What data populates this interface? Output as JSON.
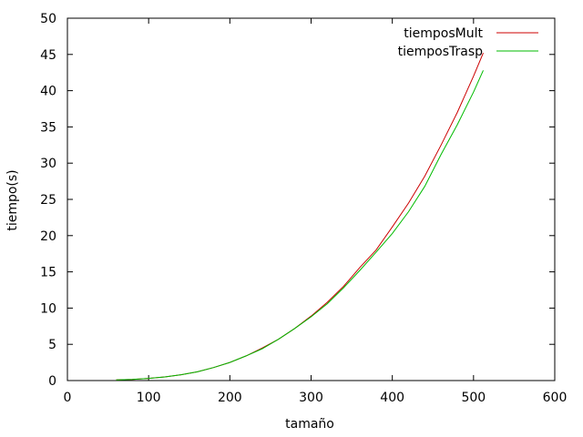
{
  "chart_data": {
    "type": "line",
    "xlabel": "tamaño",
    "ylabel": "tiempo(s)",
    "xlim": [
      0,
      600
    ],
    "ylim": [
      0,
      50
    ],
    "xticks": [
      0,
      100,
      200,
      300,
      400,
      500,
      600
    ],
    "yticks": [
      0,
      5,
      10,
      15,
      20,
      25,
      30,
      35,
      40,
      45,
      50
    ],
    "grid": false,
    "legend_position": "top-right",
    "series": [
      {
        "name": "tiemposMult",
        "color": "#cc0000",
        "x": [
          60,
          80,
          100,
          120,
          140,
          160,
          180,
          200,
          220,
          240,
          260,
          280,
          300,
          320,
          340,
          360,
          380,
          400,
          420,
          440,
          460,
          480,
          500,
          512
        ],
        "y": [
          0.1,
          0.15,
          0.3,
          0.5,
          0.8,
          1.2,
          1.8,
          2.5,
          3.4,
          4.5,
          5.7,
          7.2,
          8.9,
          10.8,
          13.0,
          15.6,
          18.0,
          21.2,
          24.5,
          28.2,
          32.5,
          37.0,
          42.0,
          45.2
        ]
      },
      {
        "name": "tiemposTrasp",
        "color": "#00bb00",
        "x": [
          60,
          80,
          100,
          120,
          140,
          160,
          180,
          200,
          220,
          240,
          260,
          280,
          300,
          320,
          340,
          360,
          380,
          400,
          420,
          440,
          460,
          480,
          500,
          512
        ],
        "y": [
          0.1,
          0.15,
          0.3,
          0.5,
          0.8,
          1.2,
          1.8,
          2.5,
          3.4,
          4.4,
          5.7,
          7.2,
          8.8,
          10.6,
          12.8,
          15.2,
          17.7,
          20.3,
          23.3,
          26.8,
          31.2,
          35.3,
          39.8,
          42.8
        ]
      }
    ]
  }
}
